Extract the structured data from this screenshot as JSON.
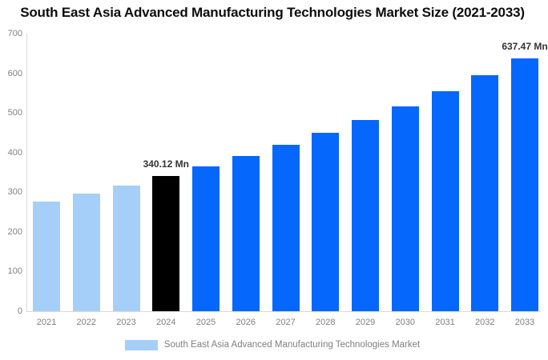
{
  "chart_data": {
    "type": "bar",
    "title": "South East Asia Advanced Manufacturing Technologies Market Size (2021-2033)",
    "categories": [
      "2021",
      "2022",
      "2023",
      "2024",
      "2025",
      "2026",
      "2027",
      "2028",
      "2029",
      "2030",
      "2031",
      "2032",
      "2033"
    ],
    "values": [
      275.9,
      295.8,
      317.2,
      340.12,
      364.7,
      391.1,
      419.4,
      449.7,
      482.2,
      517.1,
      554.5,
      594.6,
      637.47
    ],
    "units": "Mn",
    "bar_colors": [
      "#a5cff9",
      "#a5cff9",
      "#a5cff9",
      "#000000",
      "#0567fb",
      "#0567fb",
      "#0567fb",
      "#0567fb",
      "#0567fb",
      "#0567fb",
      "#0567fb",
      "#0567fb",
      "#0567fb"
    ],
    "annotations": [
      {
        "category": "2024",
        "text": "340.12 Mn"
      },
      {
        "category": "2033",
        "text": "637.47 Mn"
      }
    ],
    "xlabel": "",
    "ylabel": "",
    "ylim": [
      0,
      700
    ],
    "yticks": [
      0,
      100,
      200,
      300,
      400,
      500,
      600,
      700
    ],
    "grid": false,
    "legend_position": "bottom-center",
    "legend": {
      "label": "South East Asia Advanced Manufacturing Technologies Market",
      "swatch_color": "#a5cff9"
    },
    "colors": {
      "historical": "#a5cff9",
      "highlight": "#000000",
      "forecast": "#0567fb",
      "axis_line": "#d9d9d9",
      "tick_text": "#808080",
      "title_text": "#0d0d0d",
      "annotation_text": "#333333"
    }
  }
}
